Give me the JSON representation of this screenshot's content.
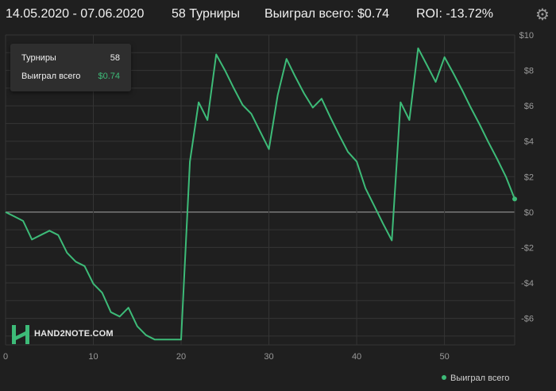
{
  "header": {
    "date_range": "14.05.2020 - 07.06.2020",
    "tournaments_text": "58 Турниры",
    "winnings_label": "Выиграл всего:",
    "winnings_value": "$0.74",
    "roi_label": "ROI:",
    "roi_value": "-13.72%"
  },
  "settings_icon": "gear-icon",
  "tooltip": {
    "tournaments_label": "Турниры",
    "tournaments_value": "58",
    "winnings_label": "Выиграл всего",
    "winnings_value": "$0.74"
  },
  "logo": {
    "text": "HAND2NOTE.COM",
    "icon": "h2n-logo-icon"
  },
  "colors": {
    "background": "#1f1f1f",
    "line": "#3dbb78",
    "positive": "#3dbb78",
    "negative": "#e05a6e",
    "grid": "#353535",
    "zero_line": "#8a8a8a"
  },
  "chart_data": {
    "type": "line",
    "title": "",
    "xlabel": "",
    "ylabel": "",
    "xlim": [
      0,
      58
    ],
    "ylim": [
      -7.5,
      10
    ],
    "x_ticks": [
      0,
      10,
      20,
      30,
      40,
      50
    ],
    "y_ticks": [
      -6,
      -4,
      -2,
      0,
      2,
      4,
      6,
      8,
      10
    ],
    "y_tick_labels": [
      "-$6",
      "-$4",
      "-$2",
      "$0",
      "$2",
      "$4",
      "$6",
      "$8",
      "$10"
    ],
    "grid": true,
    "legend_position": "bottom-right",
    "series": [
      {
        "name": "Выиграл всего",
        "x": [
          0,
          1,
          2,
          3,
          4,
          5,
          6,
          7,
          8,
          9,
          10,
          11,
          12,
          13,
          14,
          15,
          16,
          17,
          18,
          19,
          20,
          21,
          22,
          23,
          24,
          25,
          26,
          27,
          28,
          29,
          30,
          31,
          32,
          33,
          34,
          35,
          36,
          37,
          38,
          39,
          40,
          41,
          42,
          43,
          44,
          45,
          46,
          47,
          48,
          49,
          50,
          51,
          52,
          53,
          54,
          55,
          56,
          57,
          58
        ],
        "values": [
          0,
          -0.25,
          -0.5,
          -1.55,
          -1.3,
          -1.05,
          -1.3,
          -2.3,
          -2.8,
          -3.05,
          -4.05,
          -4.55,
          -5.65,
          -5.9,
          -5.4,
          -6.45,
          -6.95,
          -7.2,
          -7.2,
          -7.2,
          -7.2,
          2.85,
          6.2,
          5.2,
          8.9,
          8.0,
          7.0,
          6.05,
          5.55,
          4.55,
          3.55,
          6.6,
          8.65,
          7.65,
          6.7,
          5.9,
          6.4,
          5.35,
          4.35,
          3.4,
          2.85,
          1.35,
          0.35,
          -0.65,
          -1.6,
          6.2,
          5.2,
          9.25,
          8.3,
          7.35,
          8.75,
          7.85,
          6.9,
          5.9,
          4.95,
          3.95,
          3.0,
          2.0,
          0.74
        ]
      }
    ]
  },
  "legend": {
    "label": "Выиграл всего"
  }
}
